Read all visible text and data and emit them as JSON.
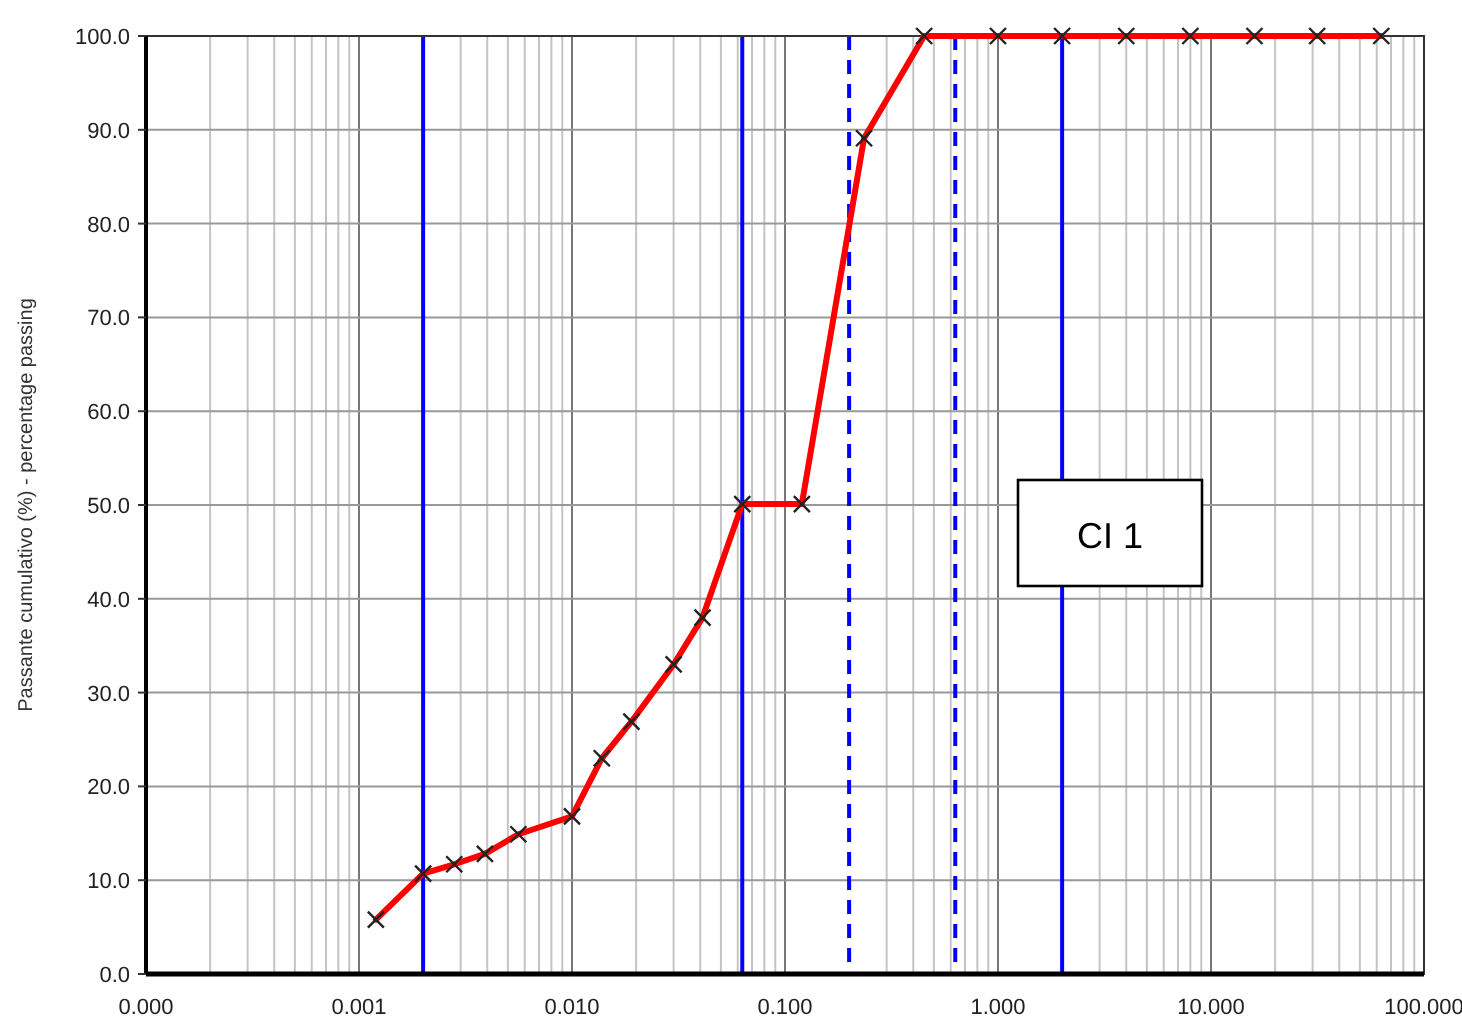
{
  "chart_data": {
    "type": "line",
    "ylabel": "Passante cumulativo (%) - percentage passing",
    "log": "x",
    "grid": true,
    "marker": "cross",
    "line_style": "solid",
    "xlim": [
      0.0001,
      100
    ],
    "ylim": [
      0,
      100
    ],
    "xticks": [
      {
        "value": 0.0001,
        "label": "0.000"
      },
      {
        "value": 0.001,
        "label": "0.001"
      },
      {
        "value": 0.01,
        "label": "0.010"
      },
      {
        "value": 0.1,
        "label": "0.100"
      },
      {
        "value": 1,
        "label": "1.000"
      },
      {
        "value": 10,
        "label": "10.000"
      },
      {
        "value": 100,
        "label": "100.000"
      }
    ],
    "yticks": [
      {
        "value": 0,
        "label": "0.0"
      },
      {
        "value": 10,
        "label": "10.0"
      },
      {
        "value": 20,
        "label": "20.0"
      },
      {
        "value": 30,
        "label": "30.0"
      },
      {
        "value": 40,
        "label": "40.0"
      },
      {
        "value": 50,
        "label": "50.0"
      },
      {
        "value": 60,
        "label": "60.0"
      },
      {
        "value": 70,
        "label": "70.0"
      },
      {
        "value": 80,
        "label": "80.0"
      },
      {
        "value": 90,
        "label": "90.0"
      },
      {
        "value": 100,
        "label": "100.0"
      }
    ],
    "x": [
      0.0012,
      0.002,
      0.0028,
      0.0039,
      0.0056,
      0.01,
      0.0138,
      0.019,
      0.03,
      0.041,
      0.063,
      0.12,
      0.235,
      0.45,
      1,
      2,
      4,
      8,
      16,
      31.5,
      63
    ],
    "series": [
      {
        "color": "#ff0000",
        "values": [
          5.8,
          10.7,
          11.7,
          12.8,
          14.9,
          16.8,
          23.0,
          26.9,
          33.0,
          38.0,
          50.1,
          50.1,
          89.1,
          100,
          100,
          100,
          100,
          100,
          100,
          100,
          100
        ]
      }
    ],
    "ref_lines": [
      {
        "axis": "x",
        "value": 0.002,
        "color": "#0000ff",
        "line_style": "solid"
      },
      {
        "axis": "x",
        "value": 0.063,
        "color": "#0000ff",
        "line_style": "solid"
      },
      {
        "axis": "x",
        "value": 0.2,
        "color": "#0000ff",
        "line_style": "dashed"
      },
      {
        "axis": "x",
        "value": 0.63,
        "color": "#0000ff",
        "line_style": "dashed"
      },
      {
        "axis": "x",
        "value": 2,
        "color": "#0000ff",
        "line_style": "solid"
      }
    ],
    "annotations": [
      "CI 1"
    ]
  }
}
